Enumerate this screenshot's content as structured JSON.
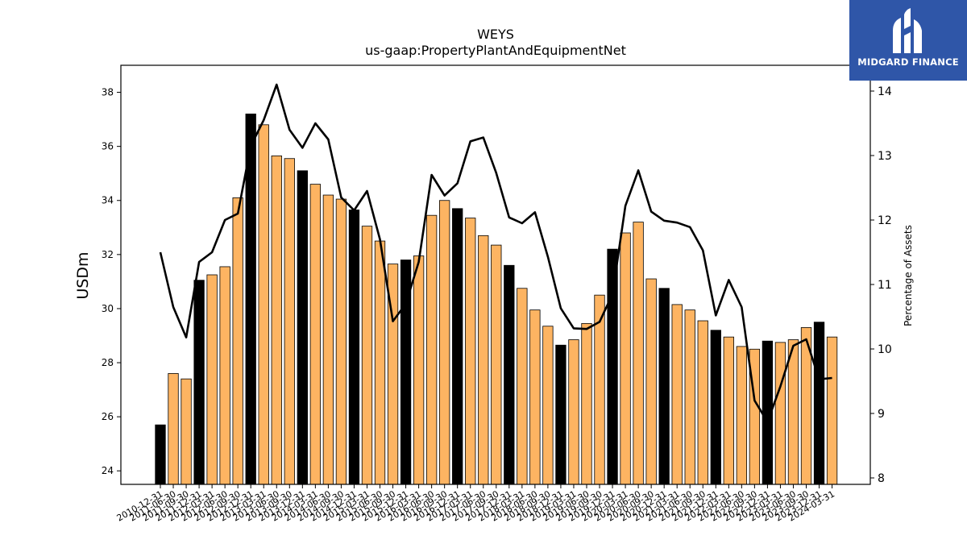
{
  "chart_data": {
    "type": "bar+line",
    "title": "WEYS",
    "subtitle": "us-gaap:PropertyPlantAndEquipmentNet",
    "ylabel": "USDm",
    "y2label": "Percentage of Assets",
    "ylim": [
      23.5,
      39.0
    ],
    "y2lim": [
      7.9,
      14.4
    ],
    "yticks": [
      24,
      26,
      28,
      30,
      32,
      34,
      36,
      38
    ],
    "y2ticks": [
      8,
      9,
      10,
      11,
      12,
      13,
      14
    ],
    "colors": {
      "annual_bar": "#000000",
      "quarter_bar": "#fdb462",
      "line": "#000000"
    },
    "x": [
      "2010-12-31",
      "2011-06-30",
      "2011-09-30",
      "2011-12-31",
      "2012-03-31",
      "2012-06-30",
      "2012-09-30",
      "2012-12-31",
      "2013-03-31",
      "2013-06-30",
      "2013-09-30",
      "2013-12-31",
      "2014-03-31",
      "2014-06-30",
      "2014-09-30",
      "2014-12-31",
      "2015-03-31",
      "2015-06-30",
      "2015-09-30",
      "2015-12-31",
      "2016-03-31",
      "2016-06-30",
      "2016-09-30",
      "2016-12-31",
      "2017-03-31",
      "2017-06-30",
      "2017-09-30",
      "2017-12-31",
      "2018-03-31",
      "2018-06-30",
      "2018-09-30",
      "2018-12-31",
      "2019-03-31",
      "2019-06-30",
      "2019-09-30",
      "2019-12-31",
      "2020-03-31",
      "2020-06-30",
      "2020-09-30",
      "2020-12-31",
      "2021-03-31",
      "2021-06-30",
      "2021-09-30",
      "2021-12-31",
      "2022-03-31",
      "2022-06-30",
      "2022-09-30",
      "2022-12-31",
      "2023-03-31",
      "2023-06-30",
      "2023-09-30",
      "2023-12-31",
      "2024-03-31"
    ],
    "values": [
      25.7,
      27.6,
      27.4,
      31.05,
      31.25,
      31.55,
      34.1,
      37.2,
      36.8,
      35.65,
      35.55,
      35.1,
      34.6,
      34.2,
      34.05,
      33.65,
      33.05,
      32.5,
      31.65,
      31.8,
      31.95,
      33.45,
      34.0,
      33.7,
      33.35,
      32.7,
      32.35,
      31.6,
      30.75,
      29.95,
      29.35,
      28.65,
      28.85,
      29.45,
      30.5,
      32.2,
      32.8,
      33.2,
      31.1,
      30.75,
      30.15,
      29.95,
      29.55,
      29.2,
      28.95,
      28.6,
      28.5,
      28.8,
      28.75,
      28.85,
      29.3,
      29.5,
      28.95
    ],
    "annual": [
      true,
      false,
      false,
      true,
      false,
      false,
      false,
      true,
      false,
      false,
      false,
      true,
      false,
      false,
      false,
      true,
      false,
      false,
      false,
      true,
      false,
      false,
      false,
      true,
      false,
      false,
      false,
      true,
      false,
      false,
      false,
      true,
      false,
      false,
      false,
      true,
      false,
      false,
      false,
      true,
      false,
      false,
      false,
      true,
      false,
      false,
      false,
      true,
      false,
      false,
      false,
      true,
      false
    ],
    "pct_assets": [
      11.5,
      10.65,
      10.18,
      11.35,
      11.5,
      12.0,
      12.1,
      13.15,
      13.55,
      14.1,
      13.4,
      13.12,
      13.5,
      13.25,
      12.35,
      12.15,
      12.45,
      11.7,
      10.43,
      10.7,
      11.35,
      12.7,
      12.38,
      12.57,
      13.22,
      13.28,
      12.73,
      12.04,
      11.95,
      12.12,
      11.43,
      10.63,
      10.32,
      10.31,
      10.42,
      10.85,
      12.22,
      12.77,
      12.13,
      11.99,
      11.96,
      11.89,
      11.53,
      10.52,
      11.07,
      10.65,
      9.2,
      8.87,
      9.42,
      10.05,
      10.15,
      9.53,
      9.55
    ]
  }
}
